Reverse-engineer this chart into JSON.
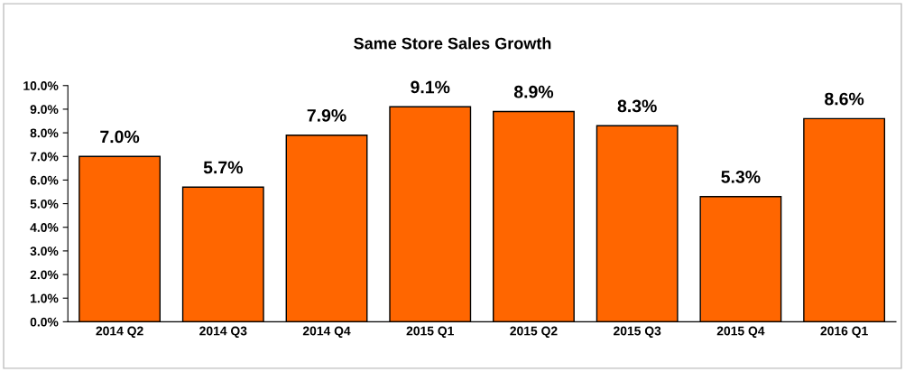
{
  "chart_data": {
    "type": "bar",
    "title": "Same Store Sales Growth",
    "categories": [
      "2014 Q2",
      "2014 Q3",
      "2014 Q4",
      "2015 Q1",
      "2015 Q2",
      "2015 Q3",
      "2015 Q4",
      "2016 Q1"
    ],
    "values": [
      7.0,
      5.7,
      7.9,
      9.1,
      8.9,
      8.3,
      5.3,
      8.6
    ],
    "value_labels": [
      "7.0%",
      "5.7%",
      "7.9%",
      "9.1%",
      "8.9%",
      "8.3%",
      "5.3%",
      "8.6%"
    ],
    "color": "#ff6600",
    "ylim": [
      0,
      10
    ],
    "yticks": [
      {
        "value": 0,
        "label": "0.0%"
      },
      {
        "value": 1,
        "label": "1.0%"
      },
      {
        "value": 2,
        "label": "2.0%"
      },
      {
        "value": 3,
        "label": "3.0%"
      },
      {
        "value": 4,
        "label": "4.0%"
      },
      {
        "value": 5,
        "label": "5.0%"
      },
      {
        "value": 6,
        "label": "6.0%"
      },
      {
        "value": 7,
        "label": "7.0%"
      },
      {
        "value": 8,
        "label": "8.0%"
      },
      {
        "value": 9,
        "label": "9.0%"
      },
      {
        "value": 10,
        "label": "10.0%"
      }
    ],
    "grid": false,
    "legend": false
  }
}
